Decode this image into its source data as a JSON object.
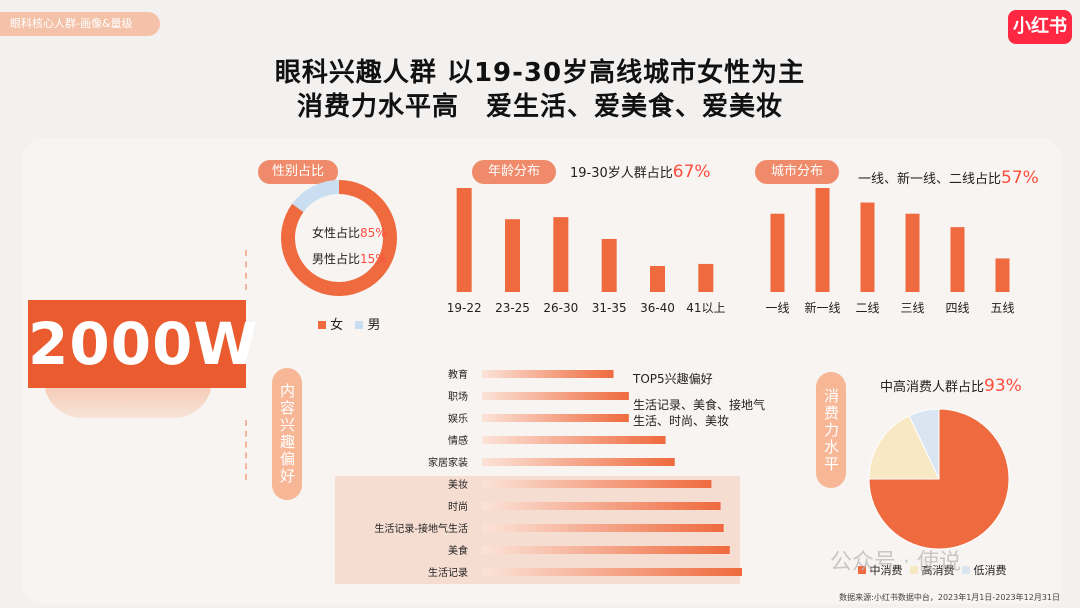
{
  "header": {
    "tag": "眼科核心人群-画像&量级",
    "logo": "小红书",
    "title_line1": "眼科兴趣人群 以19-30岁高线城市女性为主",
    "title_line2": "消费力水平高　爱生活、爱美食、爱美妆"
  },
  "total": "2000W",
  "gender": {
    "label": "性别占比",
    "female_text": "女性占比",
    "female_pct": "85%",
    "male_text": "男性占比",
    "male_pct": "15%",
    "legend_female": "女",
    "legend_male": "男"
  },
  "age": {
    "label": "年龄分布",
    "note_text": "19-30岁人群占比",
    "note_pct": "67%"
  },
  "city": {
    "label": "城市分布",
    "note_text": "一线、新一线、二线占比",
    "note_pct": "57%"
  },
  "interest": {
    "label": "内容兴趣偏好",
    "top5_title": "TOP5兴趣偏好",
    "top5_line1": "生活记录、美食、接地气",
    "top5_line2": "生活、时尚、美妆"
  },
  "consumption": {
    "label": "消费力水平",
    "note_text": "中高消费人群占比",
    "note_pct": "93%",
    "legend": [
      "中消费",
      "高消费",
      "低消费"
    ]
  },
  "footnote": "数据来源:小红书数据中台，2023年1月1日-2023年12月31日",
  "watermark": "公众号 · 使说",
  "colors": {
    "accent": "#ea5b2f",
    "bar": "#ef6a3e",
    "highlight": "#ff4d3d",
    "male": "#c9def0",
    "high_consume": "#f8e9c4",
    "low_consume": "#d9e6f2"
  },
  "chart_data": [
    {
      "type": "pie",
      "name": "gender",
      "categories": [
        "女",
        "男"
      ],
      "values": [
        85,
        15
      ]
    },
    {
      "type": "bar",
      "name": "age",
      "categories": [
        "19-22",
        "23-25",
        "26-30",
        "31-35",
        "36-40",
        "41以上"
      ],
      "values": [
        100,
        70,
        72,
        51,
        25,
        27
      ]
    },
    {
      "type": "bar",
      "name": "city",
      "categories": [
        "一线",
        "新一线",
        "二线",
        "三线",
        "四线",
        "五线"
      ],
      "values": [
        70,
        93,
        80,
        70,
        58,
        30
      ]
    },
    {
      "type": "bar",
      "orientation": "horizontal",
      "name": "interest",
      "categories": [
        "教育",
        "职场",
        "娱乐",
        "情感",
        "家居家装",
        "美妆",
        "时尚",
        "生活记录-接地气生活",
        "美食",
        "生活记录"
      ],
      "values": [
        43,
        48,
        48,
        60,
        63,
        75,
        78,
        79,
        81,
        85
      ]
    },
    {
      "type": "pie",
      "name": "consumption",
      "categories": [
        "中消费",
        "高消费",
        "低消费"
      ],
      "values": [
        75,
        18,
        7
      ]
    }
  ]
}
